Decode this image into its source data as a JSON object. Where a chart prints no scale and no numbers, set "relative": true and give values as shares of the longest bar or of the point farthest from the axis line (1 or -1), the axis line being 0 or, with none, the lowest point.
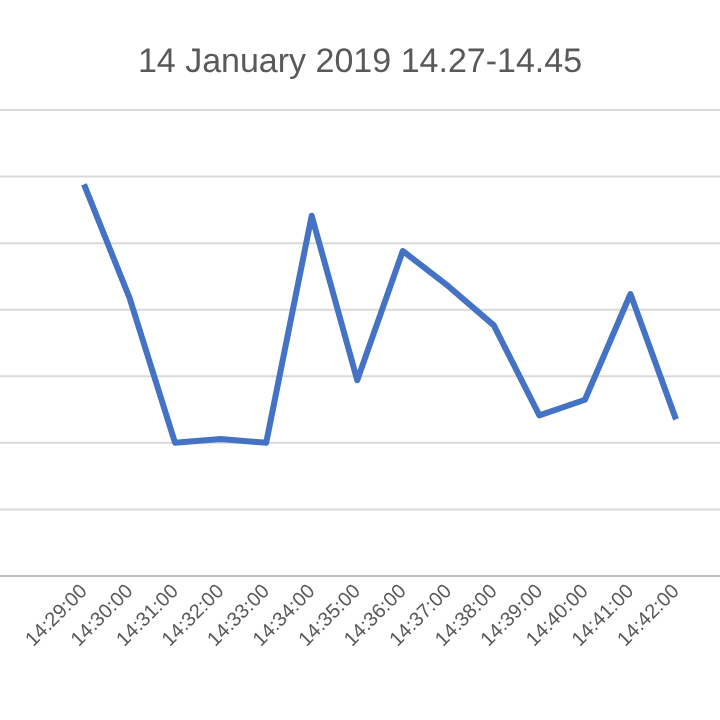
{
  "chart_data": {
    "type": "line",
    "title": "14 January 2019 14.27-14.45",
    "relative": true,
    "grid": "y",
    "marker": "none",
    "line_style": "solid",
    "categories": [
      "14:29:00",
      "14:30:00",
      "14:31:00",
      "14:32:00",
      "14:33:00",
      "14:34:00",
      "14:35:00",
      "14:36:00",
      "14:37:00",
      "14:38:00",
      "14:39:00",
      "14:40:00",
      "14:41:00",
      "14:42:00"
    ],
    "series": [
      {
        "color": "#4472c4",
        "values": [
          1,
          0.71,
          0.34,
          0.35,
          0.34,
          0.92,
          0.5,
          0.83,
          0.74,
          0.64,
          0.41,
          0.45,
          0.72,
          0.4
        ]
      }
    ]
  }
}
